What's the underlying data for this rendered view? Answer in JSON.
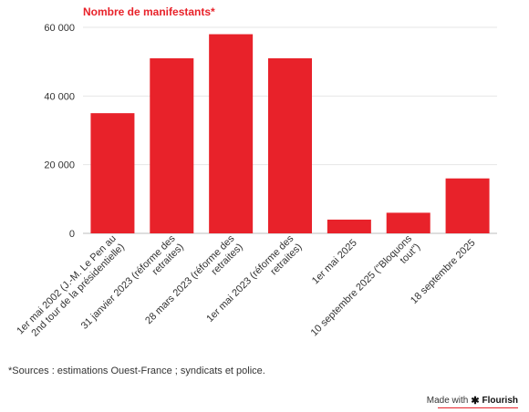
{
  "chart_data": {
    "type": "bar",
    "title": "Nombre de manifestants*",
    "xlabel": "",
    "ylabel": "",
    "ylim": [
      0,
      60000
    ],
    "yticks": [
      "0",
      "20 000",
      "40 000",
      "60 000"
    ],
    "ytick_values": [
      0,
      20000,
      40000,
      60000
    ],
    "grid": true,
    "bar_color": "#e8222a",
    "categories": [
      [
        "1er mai 2002 (J.-M. Le Pen au",
        "2nd tour de la présidentielle)"
      ],
      [
        "31 janvier 2023 (réforme des",
        "retraites)"
      ],
      [
        "28 mars 2023 (réforme des",
        "retraites)"
      ],
      [
        "1er mai 2023 (réforme des",
        "retraites)"
      ],
      [
        "1er mai 2025"
      ],
      [
        "10 septembre 2025 (\"Bloquons",
        "tout\")"
      ],
      [
        "18 septembre 2025"
      ]
    ],
    "values": [
      35000,
      51000,
      58000,
      51000,
      4000,
      6000,
      16000
    ]
  },
  "footnote": "*Sources : estimations Ouest-France ; syndicats et police.",
  "credit": {
    "prefix": "Made with",
    "icon": "asterisk-icon",
    "brand": "Flourish"
  }
}
